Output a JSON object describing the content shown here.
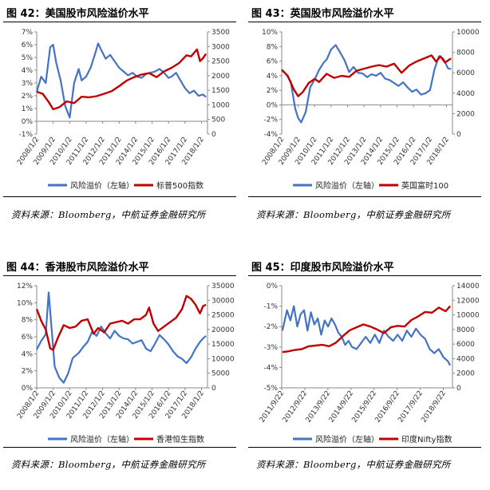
{
  "sources": {
    "text": "资料来源：Bloomberg，中航证券金融研究所"
  },
  "chart_data": [
    {
      "type": "line",
      "title": "图 42：美国股市风险溢价水平",
      "x_ticks": [
        "2008/1/2",
        "2009/1/2",
        "2010/1/2",
        "2011/1/2",
        "2012/1/2",
        "2013/1/2",
        "2014/1/2",
        "2015/1/2",
        "2016/1/2",
        "2017/1/2",
        "2018/1/2"
      ],
      "x_range": [
        2008.0,
        2019.4
      ],
      "y_left": {
        "ticks": [
          "-1%",
          "0%",
          "1%",
          "2%",
          "3%",
          "4%",
          "5%",
          "6%",
          "7%"
        ],
        "range": [
          -1,
          7
        ]
      },
      "y_right": {
        "ticks": [
          "0",
          "500",
          "1000",
          "1500",
          "2000",
          "2500",
          "3000",
          "3500"
        ],
        "range": [
          0,
          3500
        ]
      },
      "series": [
        {
          "name": "风险溢价（左轴）",
          "axis": "left",
          "color": "#4472C4",
          "x": [
            2008.0,
            2008.3,
            2008.6,
            2008.9,
            2009.1,
            2009.3,
            2009.6,
            2009.9,
            2010.2,
            2010.5,
            2010.8,
            2011.0,
            2011.3,
            2011.6,
            2011.9,
            2012.1,
            2012.3,
            2012.6,
            2012.9,
            2013.2,
            2013.5,
            2013.8,
            2014.1,
            2014.4,
            2014.7,
            2015.0,
            2015.3,
            2015.6,
            2015.9,
            2016.2,
            2016.5,
            2016.8,
            2017.0,
            2017.3,
            2017.6,
            2017.9,
            2018.2,
            2018.5,
            2018.8,
            2019.1,
            2019.3
          ],
          "y": [
            2.3,
            3.5,
            3.0,
            5.8,
            6.0,
            4.6,
            3.2,
            1.2,
            0.3,
            3.0,
            4.1,
            3.2,
            3.5,
            4.2,
            5.3,
            6.1,
            5.6,
            4.9,
            5.2,
            4.7,
            4.2,
            3.9,
            3.6,
            3.8,
            3.5,
            3.4,
            3.7,
            3.8,
            3.9,
            4.1,
            3.8,
            3.4,
            3.5,
            3.8,
            3.2,
            2.6,
            2.2,
            2.4,
            2.0,
            2.1,
            1.9
          ]
        },
        {
          "name": "标普500指数",
          "axis": "right",
          "color": "#C00000",
          "x": [
            2008.0,
            2008.4,
            2008.8,
            2009.1,
            2009.5,
            2010.0,
            2010.5,
            2011.0,
            2011.5,
            2012.0,
            2012.5,
            2013.0,
            2013.5,
            2014.0,
            2014.5,
            2015.0,
            2015.5,
            2016.0,
            2016.5,
            2017.0,
            2017.5,
            2018.0,
            2018.3,
            2018.7,
            2018.9,
            2019.1,
            2019.3
          ],
          "y": [
            1450,
            1380,
            1100,
            850,
            920,
            1120,
            1060,
            1280,
            1260,
            1300,
            1380,
            1470,
            1640,
            1830,
            1950,
            2040,
            2090,
            1950,
            2150,
            2270,
            2430,
            2700,
            2660,
            2900,
            2500,
            2600,
            2750
          ]
        }
      ]
    },
    {
      "type": "line",
      "title": "图 43：英国股市风险溢价水平",
      "x_ticks": [
        "2008/1/2",
        "2009/1/2",
        "2010/1/2",
        "2011/1/2",
        "2012/1/2",
        "2013/1/2",
        "2014/1/2",
        "2015/1/2",
        "2016/1/2",
        "2017/1/2",
        "2018/1/2"
      ],
      "x_range": [
        2008.0,
        2019.4
      ],
      "y_left": {
        "ticks": [
          "-4%",
          "-2%",
          "0%",
          "2%",
          "4%",
          "6%",
          "8%",
          "10%"
        ],
        "range": [
          -4,
          10
        ]
      },
      "y_right": {
        "ticks": [
          "0",
          "2000",
          "4000",
          "6000",
          "8000",
          "10000"
        ],
        "range": [
          0,
          10000
        ]
      },
      "series": [
        {
          "name": "风险溢价（左轴）",
          "axis": "left",
          "color": "#4472C4",
          "x": [
            2008.0,
            2008.3,
            2008.6,
            2008.9,
            2009.1,
            2009.3,
            2009.6,
            2009.9,
            2010.2,
            2010.5,
            2010.8,
            2011.0,
            2011.3,
            2011.6,
            2011.9,
            2012.2,
            2012.5,
            2012.8,
            2013.1,
            2013.4,
            2013.7,
            2014.0,
            2014.3,
            2014.6,
            2014.9,
            2015.2,
            2015.5,
            2015.8,
            2016.1,
            2016.4,
            2016.7,
            2017.0,
            2017.3,
            2017.6,
            2017.9,
            2018.2,
            2018.5,
            2018.8,
            2019.1,
            2019.3
          ],
          "y": [
            4.8,
            4.2,
            3.2,
            -0.5,
            -1.8,
            -2.4,
            -1.0,
            2.4,
            3.5,
            4.8,
            5.8,
            6.2,
            7.6,
            8.2,
            7.2,
            6.1,
            4.5,
            5.2,
            4.4,
            4.3,
            3.8,
            4.2,
            4.0,
            4.4,
            3.6,
            3.4,
            3.0,
            2.6,
            3.1,
            2.4,
            1.8,
            2.1,
            1.4,
            1.6,
            2.0,
            4.9,
            6.7,
            6.3,
            5.0,
            4.9
          ]
        },
        {
          "name": "英国富时100",
          "axis": "right",
          "color": "#C00000",
          "x": [
            2008.0,
            2008.4,
            2008.8,
            2009.1,
            2009.4,
            2009.8,
            2010.2,
            2010.5,
            2011.0,
            2011.5,
            2012.0,
            2012.5,
            2013.0,
            2013.5,
            2014.0,
            2014.5,
            2015.0,
            2015.5,
            2016.0,
            2016.5,
            2017.0,
            2017.5,
            2018.0,
            2018.3,
            2018.6,
            2018.9,
            2019.1,
            2019.3
          ],
          "y": [
            6300,
            5700,
            4400,
            3700,
            4100,
            5000,
            5400,
            5100,
            5900,
            5500,
            5700,
            5600,
            6200,
            6400,
            6600,
            6750,
            6600,
            6900,
            6000,
            6700,
            7100,
            7400,
            7700,
            7100,
            7600,
            7000,
            7200,
            7400
          ]
        }
      ]
    },
    {
      "type": "line",
      "title": "图 44：香港股市风险溢价水平",
      "x_ticks": [
        "2008/1/2",
        "2009/1/2",
        "2010/1/2",
        "2011/1/2",
        "2012/1/2",
        "2013/1/2",
        "2014/1/2",
        "2015/1/2",
        "2016/1/2",
        "2017/1/2",
        "2018/1/2"
      ],
      "x_range": [
        2008.0,
        2019.4
      ],
      "y_left": {
        "ticks": [
          "0%",
          "2%",
          "4%",
          "6%",
          "8%",
          "10%",
          "12%"
        ],
        "range": [
          0,
          12
        ]
      },
      "y_right": {
        "ticks": [
          "0",
          "5000",
          "10000",
          "15000",
          "20000",
          "25000",
          "30000",
          "35000"
        ],
        "range": [
          0,
          35000
        ]
      },
      "series": [
        {
          "name": "风险溢价（左轴）",
          "axis": "left",
          "color": "#4472C4",
          "x": [
            2008.0,
            2008.3,
            2008.6,
            2008.8,
            2009.0,
            2009.2,
            2009.5,
            2009.8,
            2010.1,
            2010.4,
            2010.8,
            2011.1,
            2011.4,
            2011.7,
            2012.0,
            2012.3,
            2012.6,
            2012.9,
            2013.2,
            2013.5,
            2013.8,
            2014.1,
            2014.4,
            2014.7,
            2015.0,
            2015.3,
            2015.6,
            2015.9,
            2016.2,
            2016.5,
            2016.8,
            2017.1,
            2017.4,
            2017.7,
            2018.0,
            2018.3,
            2018.6,
            2018.9,
            2019.1,
            2019.3
          ],
          "y": [
            4.5,
            5.5,
            6.3,
            11.2,
            6.8,
            2.5,
            1.2,
            0.6,
            1.7,
            3.5,
            4.1,
            4.8,
            5.4,
            6.6,
            6.1,
            7.2,
            6.4,
            5.8,
            6.7,
            6.1,
            5.8,
            5.7,
            5.2,
            5.4,
            5.6,
            4.6,
            4.3,
            5.2,
            6.2,
            5.7,
            5.1,
            4.3,
            3.7,
            3.4,
            2.9,
            3.6,
            4.6,
            5.4,
            5.8,
            6.1
          ]
        },
        {
          "name": "香港恒生指数",
          "axis": "right",
          "color": "#C00000",
          "x": [
            2008.0,
            2008.3,
            2008.6,
            2008.9,
            2009.1,
            2009.4,
            2009.8,
            2010.2,
            2010.6,
            2011.0,
            2011.4,
            2011.8,
            2012.1,
            2012.5,
            2012.9,
            2013.3,
            2013.7,
            2014.1,
            2014.5,
            2014.9,
            2015.3,
            2015.5,
            2015.8,
            2016.1,
            2016.5,
            2016.9,
            2017.3,
            2017.7,
            2018.0,
            2018.3,
            2018.6,
            2018.9,
            2019.1,
            2019.3
          ],
          "y": [
            27000,
            23000,
            20000,
            13500,
            13000,
            17000,
            21500,
            20500,
            21000,
            23000,
            23500,
            18500,
            20500,
            19000,
            22000,
            22500,
            23000,
            22000,
            23500,
            23500,
            25000,
            27500,
            22000,
            19500,
            21000,
            22500,
            24000,
            27000,
            31500,
            30500,
            28500,
            25500,
            28000,
            28500
          ]
        }
      ]
    },
    {
      "type": "line",
      "title": "图 45：印度股市风险溢价水平",
      "x_ticks": [
        "2011/9/22",
        "2012/9/22",
        "2013/9/22",
        "2014/9/22",
        "2015/9/22",
        "2016/9/22",
        "2017/9/22",
        "2018/9/22"
      ],
      "x_range": [
        2011.72,
        2019.2
      ],
      "y_left": {
        "ticks": [
          "-5%",
          "-4%",
          "-3%",
          "-2%",
          "-1%",
          "0%"
        ],
        "range": [
          -5,
          0
        ]
      },
      "y_right": {
        "ticks": [
          "0",
          "2000",
          "4000",
          "6000",
          "8000",
          "10000",
          "12000",
          "14000"
        ],
        "range": [
          0,
          14000
        ]
      },
      "series": [
        {
          "name": "风险溢价（左轴）",
          "axis": "left",
          "color": "#4472C4",
          "x": [
            2011.75,
            2011.95,
            2012.1,
            2012.25,
            2012.4,
            2012.55,
            2012.7,
            2012.85,
            2013.0,
            2013.15,
            2013.3,
            2013.45,
            2013.6,
            2013.75,
            2013.9,
            2014.05,
            2014.2,
            2014.35,
            2014.5,
            2014.65,
            2014.8,
            2015.0,
            2015.2,
            2015.4,
            2015.6,
            2015.8,
            2016.0,
            2016.2,
            2016.4,
            2016.6,
            2016.8,
            2017.0,
            2017.2,
            2017.4,
            2017.6,
            2017.8,
            2018.0,
            2018.2,
            2018.4,
            2018.6,
            2018.8,
            2019.0,
            2019.1
          ],
          "y": [
            -2.2,
            -1.2,
            -1.7,
            -1.0,
            -2.0,
            -1.4,
            -1.2,
            -2.2,
            -1.3,
            -1.9,
            -1.6,
            -2.4,
            -1.7,
            -2.0,
            -1.6,
            -1.9,
            -2.3,
            -2.5,
            -2.9,
            -2.7,
            -3.0,
            -3.1,
            -2.8,
            -2.5,
            -2.8,
            -2.4,
            -2.8,
            -2.2,
            -2.5,
            -2.7,
            -2.4,
            -2.7,
            -2.2,
            -2.5,
            -2.1,
            -2.4,
            -2.6,
            -3.1,
            -3.3,
            -3.1,
            -3.5,
            -3.7,
            -3.9
          ]
        },
        {
          "name": "印度Nifty指数",
          "axis": "right",
          "color": "#C00000",
          "x": [
            2011.75,
            2012.0,
            2012.3,
            2012.6,
            2012.9,
            2013.2,
            2013.5,
            2013.8,
            2014.1,
            2014.4,
            2014.7,
            2015.0,
            2015.3,
            2015.6,
            2015.9,
            2016.2,
            2016.5,
            2016.8,
            2017.1,
            2017.4,
            2017.7,
            2018.0,
            2018.3,
            2018.6,
            2018.9,
            2019.1
          ],
          "y": [
            4900,
            5000,
            5200,
            5300,
            5700,
            5800,
            5900,
            5700,
            6200,
            7100,
            7900,
            8300,
            8700,
            8400,
            8000,
            7500,
            8300,
            8500,
            8400,
            9300,
            9800,
            10400,
            10300,
            11000,
            10500,
            11200
          ]
        }
      ]
    }
  ]
}
